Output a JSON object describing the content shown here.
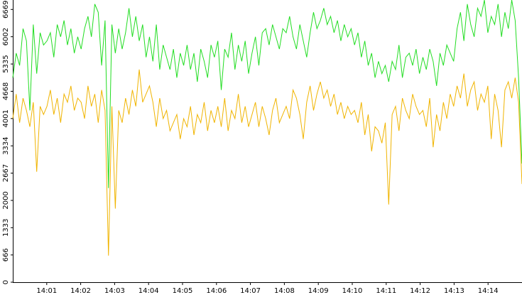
{
  "chart_data": {
    "type": "line",
    "xlim": [
      0,
      900
    ],
    "xticks": [
      {
        "value": 60,
        "label": "14:01"
      },
      {
        "value": 120,
        "label": "14:02"
      },
      {
        "value": 180,
        "label": "14:03"
      },
      {
        "value": 240,
        "label": "14:04"
      },
      {
        "value": 300,
        "label": "14:05"
      },
      {
        "value": 360,
        "label": "14:06"
      },
      {
        "value": 420,
        "label": "14:07"
      },
      {
        "value": 480,
        "label": "14:08"
      },
      {
        "value": 540,
        "label": "14:09"
      },
      {
        "value": 600,
        "label": "14:10"
      },
      {
        "value": 660,
        "label": "14:11"
      },
      {
        "value": 720,
        "label": "14:12"
      },
      {
        "value": 780,
        "label": "14:13"
      },
      {
        "value": 840,
        "label": "14:14"
      }
    ],
    "ylim": [
      0,
      6900
    ],
    "yticks": [
      0,
      666,
      1333,
      2000,
      2667,
      3334,
      4001,
      4668,
      5335,
      6002,
      6669
    ],
    "series": [
      {
        "color": "#f0b400",
        "values": [
          4000,
          4600,
          3900,
          4500,
          4200,
          3800,
          4400,
          2700,
          4300,
          4100,
          4300,
          4700,
          4100,
          4500,
          3900,
          4600,
          4400,
          4800,
          4200,
          4500,
          4400,
          4000,
          4800,
          4300,
          4600,
          3900,
          4700,
          4200,
          650,
          4300,
          1800,
          4200,
          3900,
          4500,
          4100,
          4700,
          4300,
          5200,
          4400,
          4600,
          4800,
          4400,
          3800,
          4500,
          4000,
          4200,
          3700,
          3900,
          4100,
          3500,
          4000,
          3800,
          4300,
          3600,
          4100,
          3900,
          4400,
          3700,
          4200,
          3900,
          4300,
          3800,
          4500,
          3700,
          4200,
          4000,
          4600,
          3900,
          4300,
          3800,
          4100,
          4400,
          3800,
          4300,
          4000,
          3600,
          4200,
          4500,
          3900,
          4100,
          4300,
          4000,
          4700,
          4500,
          4100,
          3500,
          4400,
          4800,
          4200,
          4600,
          4900,
          4500,
          4700,
          4300,
          4600,
          4100,
          4400,
          4000,
          4300,
          4100,
          4200,
          3900,
          4400,
          3600,
          4100,
          3200,
          3800,
          3700,
          3400,
          3900,
          1900,
          4100,
          4300,
          3700,
          4500,
          4200,
          4000,
          4600,
          4300,
          4100,
          4200,
          3800,
          4500,
          3300,
          4100,
          3700,
          4400,
          4000,
          4600,
          4300,
          4800,
          4500,
          5100,
          4300,
          4700,
          4900,
          4200,
          4600,
          4400,
          4800,
          3500,
          4600,
          4200,
          3300,
          4700,
          4900,
          4500,
          5000,
          4400,
          2400
        ]
      },
      {
        "color": "#22dd22",
        "values": [
          5000,
          5600,
          5300,
          6200,
          5900,
          4200,
          6300,
          5100,
          6100,
          5800,
          5900,
          6100,
          5500,
          6300,
          6000,
          6400,
          5800,
          6200,
          5600,
          6000,
          5700,
          6200,
          6500,
          6000,
          6800,
          6600,
          5300,
          6400,
          2300,
          6300,
          5600,
          6200,
          5700,
          6100,
          6700,
          6000,
          6500,
          5900,
          6300,
          5500,
          6000,
          5400,
          6300,
          5200,
          5800,
          5500,
          5200,
          5700,
          5000,
          5600,
          5300,
          5800,
          5200,
          5600,
          4900,
          5700,
          5400,
          5000,
          5800,
          5500,
          5900,
          4700,
          5700,
          5500,
          6100,
          5200,
          5800,
          5400,
          5900,
          5100,
          5600,
          6000,
          5300,
          6100,
          6200,
          5800,
          6300,
          6000,
          5700,
          6200,
          6100,
          6500,
          6000,
          5700,
          6300,
          5900,
          5500,
          6100,
          6600,
          6200,
          6400,
          6700,
          6300,
          6500,
          6100,
          6400,
          5900,
          6300,
          6000,
          6200,
          5800,
          6100,
          5500,
          5900,
          5300,
          5600,
          5000,
          5400,
          5100,
          5300,
          4900,
          5400,
          5200,
          5800,
          5000,
          5500,
          5600,
          5300,
          5700,
          5100,
          5500,
          5200,
          5700,
          5400,
          4800,
          5600,
          5300,
          5800,
          5600,
          5400,
          6200,
          6600,
          5900,
          6800,
          6300,
          6000,
          6700,
          6500,
          6900,
          6100,
          6500,
          6300,
          6800,
          6000,
          6600,
          6200,
          6900,
          6400,
          5000,
          2900
        ]
      }
    ]
  }
}
